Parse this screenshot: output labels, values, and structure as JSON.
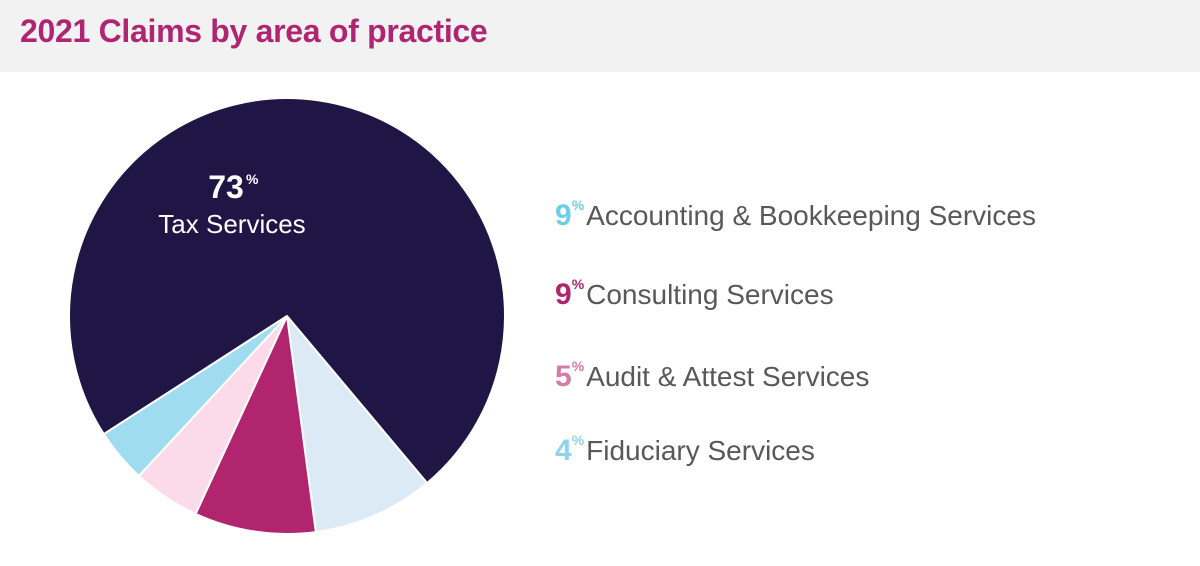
{
  "title": "2021 Claims by area of practice",
  "chart_data": {
    "type": "pie",
    "title": "2021 Claims by area of practice",
    "start_angle_deg": 140,
    "slices": [
      {
        "label": "Accounting & Bookkeeping Services",
        "value": 9,
        "display": "9",
        "color": "#dceaf5",
        "legend_color": "#6fcde8"
      },
      {
        "label": "Consulting Services",
        "value": 9,
        "display": "9",
        "color": "#b1246e",
        "legend_color": "#b1246e"
      },
      {
        "label": "Audit & Attest Services",
        "value": 5,
        "display": "5",
        "color": "#fbdbe9",
        "legend_color": "#d67aa6"
      },
      {
        "label": "Fiduciary Services",
        "value": 4,
        "display": "4",
        "color": "#9fdcf0",
        "legend_color": "#8fd3ee"
      },
      {
        "label": "Tax Services",
        "value": 73,
        "display": "73",
        "color": "#1f1646",
        "legend_color": "#ffffff"
      }
    ],
    "percent_symbol": "%",
    "legend_placement": "right",
    "inline_label_slice": "Tax Services"
  }
}
